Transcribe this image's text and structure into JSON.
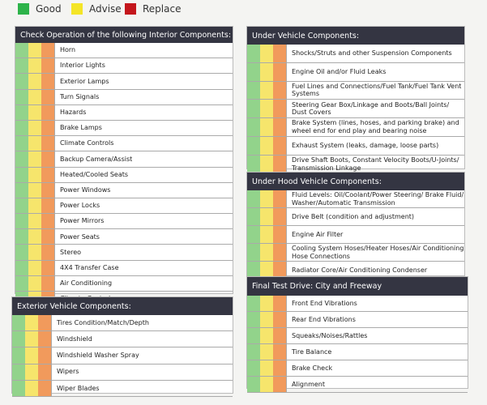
{
  "legend": [
    {
      "label": "Good",
      "color": "#2db34a"
    },
    {
      "label": "Advise",
      "color": "#f4e527"
    },
    {
      "label": "Replace",
      "color": "#c4161c"
    }
  ],
  "sections": [
    {
      "title": "Check Operation of the following Interior Components:",
      "items": [
        "Horn",
        "Interior Lights",
        "Exterior Lamps",
        "Turn Signals",
        "Hazards",
        "Brake Lamps",
        "Climate Controls",
        "Backup Camera/Assist",
        "Heated/Cooled Seats",
        "Power Windows",
        "Power Locks",
        "Power Mirrors",
        "Power Seats",
        "Stereo",
        "4X4 Transfer Case",
        "Air Conditioning",
        "Climate Controls"
      ]
    },
    {
      "title": "Exterior Vehicle Components:",
      "items": [
        "Tires Condition/Match/Depth",
        "Windshield",
        "Windshield Washer Spray",
        "Wipers",
        "Wiper Blades"
      ]
    },
    {
      "title": "Under Vehicle Components:",
      "items": [
        "Shocks/Struts and other Suspension Components",
        "Engine Oil and/or Fluid Leaks",
        "Fuel Lines and Connections/Fuel Tank/Fuel Tank Vent Systems",
        "Steering Gear Box/Linkage and Boots/Ball Joints/ Dust Covers",
        "Brake System (lines, hoses, and parking brake) and wheel end for end play and bearing noise",
        "Exhaust System (leaks, damage, loose parts)",
        "Drive Shaft Boots, Constant Velocity Boots/U-Joints/ Transmission Linkage"
      ]
    },
    {
      "title": "Under Hood Vehicle Components:",
      "items": [
        "Fluid Levels: Oil/Coolant/Power Steering/ Brake Fluid/ Washer/Automatic Transmission",
        "Drive Belt (condition and adjustment)",
        "Engine Air Filter",
        "Cooling System Hoses/Heater Hoses/Air Conditioning Hose Connections",
        "Radiator Core/Air Conditioning Condenser"
      ]
    },
    {
      "title": "Final Test Drive: City and Freeway",
      "items": [
        "Front End Vibrations",
        "Rear End Vibrations",
        "Squeaks/Noises/Rattles",
        "Tire Balance",
        "Brake Check",
        "Alignment"
      ]
    }
  ]
}
